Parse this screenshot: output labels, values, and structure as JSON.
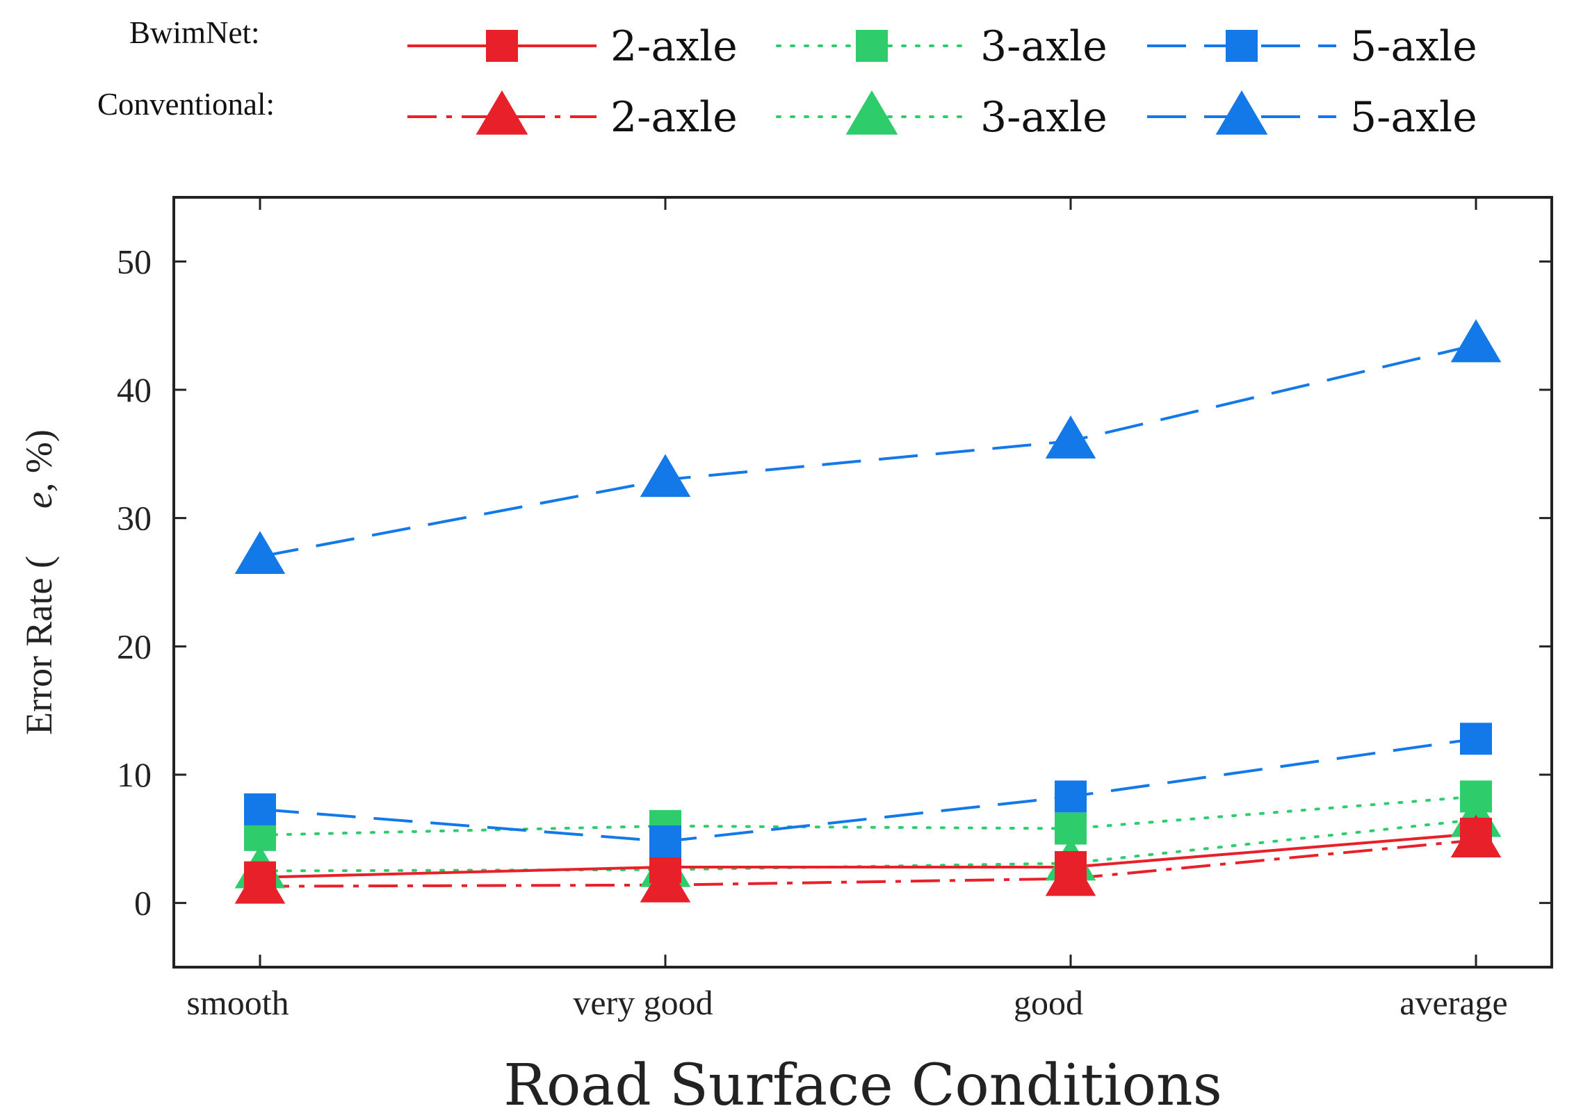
{
  "chart_data": {
    "type": "line",
    "title": "",
    "xlabel": "Road Surface Conditions",
    "ylabel": "Error Rate (",
    "ylabel_symbol": "e",
    "ylabel_unit": ", %)",
    "categories": [
      "smooth",
      "very good",
      "good",
      "average"
    ],
    "ylim": [
      -5,
      55
    ],
    "yticks": [
      "0",
      "10",
      "20",
      "30",
      "40",
      "50"
    ],
    "ytick_values": [
      0,
      10,
      20,
      30,
      40,
      50
    ],
    "legend": {
      "placement": "top",
      "groups": [
        "BwimNet:",
        "Conventional:"
      ]
    },
    "series": [
      {
        "name": "2-axle",
        "group": "BwimNet:",
        "method": "BwimNet",
        "color": "#e8202a",
        "dash": "solid",
        "marker": "square",
        "values": [
          2.0,
          2.8,
          2.8,
          5.4
        ]
      },
      {
        "name": "3-axle",
        "group": "BwimNet:",
        "method": "BwimNet",
        "color": "#2ecc6a",
        "dash": "dotted",
        "marker": "square",
        "values": [
          5.3,
          6.0,
          5.8,
          8.3
        ]
      },
      {
        "name": "5-axle",
        "group": "BwimNet:",
        "method": "BwimNet",
        "color": "#1479e8",
        "dash": "longdash",
        "marker": "square",
        "values": [
          7.3,
          4.8,
          8.3,
          12.8
        ]
      },
      {
        "name": "2-axle",
        "group": "Conventional:",
        "method": "Conventional",
        "color": "#e8202a",
        "dash": "dashdot",
        "marker": "triangle",
        "values": [
          1.3,
          1.4,
          1.9,
          4.9
        ]
      },
      {
        "name": "3-axle",
        "group": "Conventional:",
        "method": "Conventional",
        "color": "#2ecc6a",
        "dash": "dotted",
        "marker": "triangle",
        "values": [
          2.5,
          2.6,
          3.1,
          6.5
        ]
      },
      {
        "name": "5-axle",
        "group": "Conventional:",
        "method": "Conventional",
        "color": "#1479e8",
        "dash": "longdash",
        "marker": "triangle",
        "values": [
          27.0,
          33.0,
          36.0,
          43.5
        ]
      }
    ]
  }
}
